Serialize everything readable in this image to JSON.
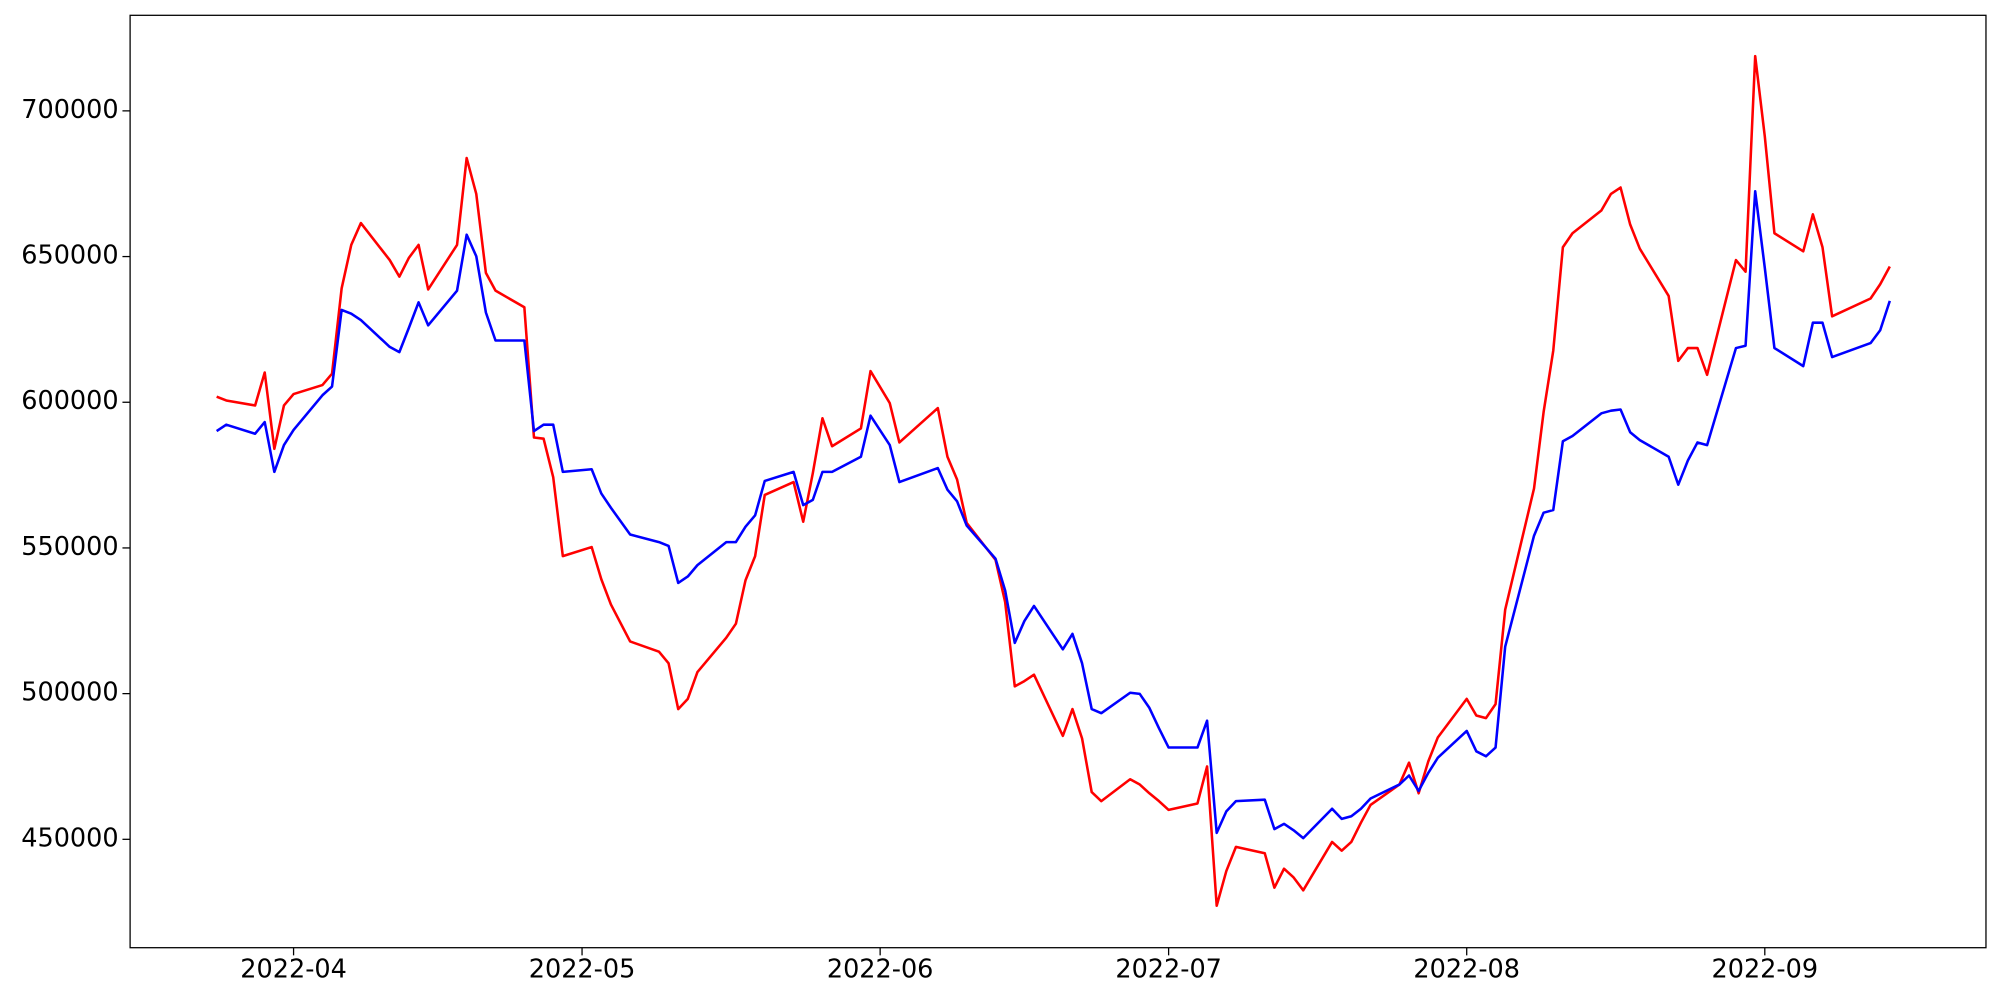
{
  "chart_data": {
    "type": "line",
    "x": [
      "2022-03-24",
      "2022-03-25",
      "2022-03-28",
      "2022-03-29",
      "2022-03-30",
      "2022-03-31",
      "2022-04-01",
      "2022-04-04",
      "2022-04-05",
      "2022-04-06",
      "2022-04-07",
      "2022-04-08",
      "2022-04-11",
      "2022-04-12",
      "2022-04-13",
      "2022-04-14",
      "2022-04-15",
      "2022-04-18",
      "2022-04-19",
      "2022-04-20",
      "2022-04-21",
      "2022-04-22",
      "2022-04-25",
      "2022-04-26",
      "2022-04-27",
      "2022-04-28",
      "2022-04-29",
      "2022-05-02",
      "2022-05-03",
      "2022-05-04",
      "2022-05-06",
      "2022-05-09",
      "2022-05-10",
      "2022-05-11",
      "2022-05-12",
      "2022-05-13",
      "2022-05-16",
      "2022-05-17",
      "2022-05-18",
      "2022-05-19",
      "2022-05-20",
      "2022-05-23",
      "2022-05-24",
      "2022-05-25",
      "2022-05-26",
      "2022-05-27",
      "2022-05-30",
      "2022-05-31",
      "2022-06-02",
      "2022-06-03",
      "2022-06-07",
      "2022-06-08",
      "2022-06-09",
      "2022-06-10",
      "2022-06-13",
      "2022-06-14",
      "2022-06-15",
      "2022-06-16",
      "2022-06-17",
      "2022-06-20",
      "2022-06-21",
      "2022-06-22",
      "2022-06-23",
      "2022-06-24",
      "2022-06-27",
      "2022-06-28",
      "2022-06-29",
      "2022-06-30",
      "2022-07-01",
      "2022-07-04",
      "2022-07-05",
      "2022-07-06",
      "2022-07-07",
      "2022-07-08",
      "2022-07-11",
      "2022-07-12",
      "2022-07-13",
      "2022-07-14",
      "2022-07-15",
      "2022-07-18",
      "2022-07-19",
      "2022-07-20",
      "2022-07-21",
      "2022-07-22",
      "2022-07-25",
      "2022-07-26",
      "2022-07-27",
      "2022-07-28",
      "2022-07-29",
      "2022-08-01",
      "2022-08-02",
      "2022-08-03",
      "2022-08-04",
      "2022-08-05",
      "2022-08-08",
      "2022-08-09",
      "2022-08-10",
      "2022-08-11",
      "2022-08-12",
      "2022-08-15",
      "2022-08-16",
      "2022-08-17",
      "2022-08-18",
      "2022-08-19",
      "2022-08-22",
      "2022-08-23",
      "2022-08-24",
      "2022-08-25",
      "2022-08-26",
      "2022-08-29",
      "2022-08-30",
      "2022-08-31",
      "2022-09-01",
      "2022-09-02",
      "2022-09-05",
      "2022-09-06",
      "2022-09-07",
      "2022-09-08",
      "2022-09-12",
      "2022-09-13",
      "2022-09-14"
    ],
    "series": [
      {
        "color": "#ff0000",
        "values": [
          601900,
          600600,
          598900,
          610200,
          584000,
          598900,
          602800,
          605900,
          609800,
          639100,
          654000,
          661500,
          648800,
          643100,
          649600,
          654000,
          638700,
          654000,
          683800,
          671500,
          644400,
          638300,
          632600,
          587900,
          587500,
          574300,
          547200,
          550300,
          539300,
          530600,
          517900,
          514400,
          510400,
          494700,
          498200,
          507400,
          519200,
          524000,
          538900,
          547200,
          568200,
          572600,
          559000,
          575700,
          594500,
          584900,
          591000,
          610700,
          599700,
          586200,
          598000,
          581300,
          573500,
          558600,
          545900,
          531400,
          502500,
          504300,
          506500,
          485500,
          494700,
          484600,
          466200,
          463100,
          470600,
          468800,
          465800,
          463100,
          460100,
          462300,
          475000,
          427200,
          439100,
          447400,
          445200,
          433400,
          439900,
          436900,
          432500,
          449100,
          446100,
          449100,
          455700,
          461800,
          468800,
          476300,
          465800,
          476700,
          485000,
          498200,
          492500,
          491600,
          496400,
          528800,
          570400,
          596700,
          617700,
          653200,
          658000,
          665800,
          671500,
          673700,
          661000,
          652700,
          636500,
          614200,
          618600,
          618600,
          609400,
          648800,
          644800,
          718800,
          691200,
          658000,
          651800,
          664500,
          653200,
          629500,
          635600,
          640500,
          646600
        ]
      },
      {
        "color": "#0000ff",
        "values": [
          590100,
          592300,
          589200,
          593200,
          576100,
          585300,
          590500,
          602400,
          605400,
          631700,
          630400,
          628200,
          619000,
          617200,
          625600,
          634300,
          626400,
          638300,
          657500,
          650100,
          630800,
          621200,
          621200,
          590100,
          592300,
          592300,
          576100,
          577000,
          568700,
          563800,
          554600,
          552000,
          550700,
          538000,
          540200,
          544100,
          552000,
          552000,
          557300,
          561200,
          573000,
          576100,
          564700,
          566500,
          576100,
          576100,
          581300,
          595400,
          585300,
          572600,
          577400,
          570000,
          566000,
          557700,
          546300,
          535400,
          517400,
          524900,
          530100,
          515200,
          520500,
          510400,
          494700,
          493300,
          500300,
          499900,
          495100,
          488100,
          481500,
          481500,
          490700,
          452200,
          459600,
          463100,
          463600,
          453500,
          455300,
          453100,
          450400,
          460500,
          457000,
          457900,
          460500,
          464000,
          468800,
          471900,
          466600,
          472800,
          478000,
          487200,
          480200,
          478500,
          481500,
          516100,
          554200,
          562100,
          563000,
          586600,
          588400,
          596200,
          597100,
          597500,
          589700,
          587000,
          581300,
          571700,
          580000,
          586200,
          585300,
          618600,
          619400,
          672400,
          646100,
          618600,
          612400,
          627300,
          627300,
          615500,
          620300,
          624700,
          634800
        ]
      }
    ],
    "xlim": [
      "2022-03-15",
      "2022-09-24"
    ],
    "xticks": [
      {
        "value": "2022-04-01",
        "label": "2022-04"
      },
      {
        "value": "2022-05-01",
        "label": "2022-05"
      },
      {
        "value": "2022-06-01",
        "label": "2022-06"
      },
      {
        "value": "2022-07-01",
        "label": "2022-07"
      },
      {
        "value": "2022-08-01",
        "label": "2022-08"
      },
      {
        "value": "2022-09-01",
        "label": "2022-09"
      }
    ],
    "ylim": [
      412800,
      732800
    ],
    "yticks": [
      450000,
      500000,
      550000,
      600000,
      650000,
      700000
    ],
    "grid": false
  }
}
